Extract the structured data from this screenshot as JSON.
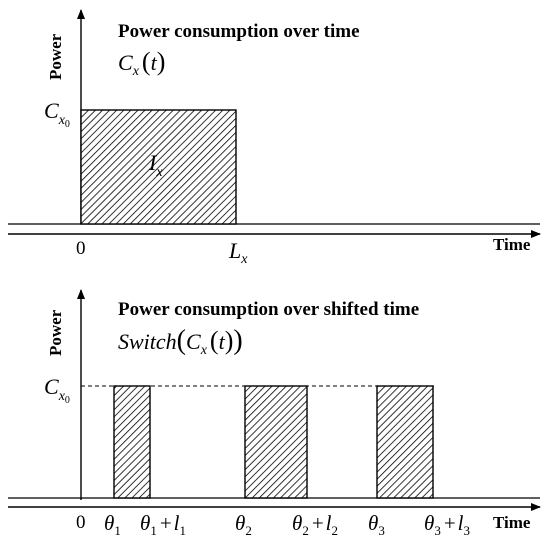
{
  "top_panel": {
    "title": "Power consumption over time",
    "function": {
      "name": "C",
      "subscript": "x",
      "argument": "t"
    },
    "y_axis_label": "Power",
    "x_axis_label": "Time",
    "level": {
      "name": "C",
      "subscript": "x",
      "sub_subscript": "0"
    },
    "area": {
      "name": "I",
      "subscript": "x"
    },
    "tick_origin": "0",
    "tick_end": {
      "name": "L",
      "subscript": "x"
    }
  },
  "bottom_panel": {
    "title": "Power consumption over shifted time",
    "function": {
      "wrapper": "Switch",
      "name": "C",
      "subscript": "x",
      "argument": "t"
    },
    "y_axis_label": "Power",
    "x_axis_label": "Time",
    "level": {
      "name": "C",
      "subscript": "x",
      "sub_subscript": "0"
    },
    "tick_origin": "0",
    "ticks": [
      {
        "symbol": "θ",
        "index": "1"
      },
      {
        "symbol": "θ",
        "index": "1",
        "plus": "+",
        "length": "l",
        "length_index": "1"
      },
      {
        "symbol": "θ",
        "index": "2"
      },
      {
        "symbol": "θ",
        "index": "2",
        "plus": "+",
        "length": "l",
        "length_index": "2"
      },
      {
        "symbol": "θ",
        "index": "3"
      },
      {
        "symbol": "θ",
        "index": "3",
        "plus": "+",
        "length": "l",
        "length_index": "3"
      }
    ]
  }
}
